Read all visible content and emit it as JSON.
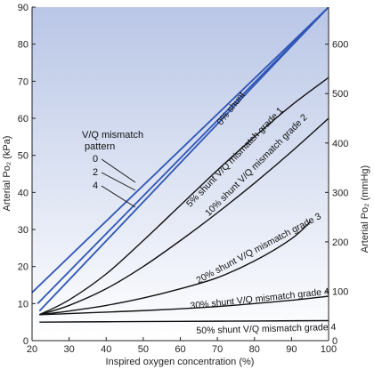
{
  "chart_data": {
    "type": "line",
    "xlabel": "Inspired oxygen concentration (%)",
    "ylabel_left": "Arterial Po₂ (kPa)",
    "ylabel_right": "Arterial Po₂ (mmHg)",
    "xlim": [
      20,
      100
    ],
    "ylim_left": [
      0,
      90
    ],
    "ylim_right_ticks": [
      0,
      100,
      200,
      300,
      400,
      500,
      600
    ],
    "x_ticks": [
      20,
      30,
      40,
      50,
      60,
      70,
      80,
      90,
      100
    ],
    "y_ticks_left": [
      0,
      10,
      20,
      30,
      40,
      50,
      60,
      70,
      80,
      90
    ],
    "legend": {
      "title_line1": "V/Q mismatch",
      "title_line2": "pattern",
      "items": [
        "0",
        "2",
        "4"
      ]
    },
    "colors": {
      "zero_shunt": "#2f55b5",
      "shunt": "#111111",
      "background_top": "#b9c6e6"
    },
    "series": [
      {
        "name": "0% shunt, pattern 0",
        "color": "#2f55b5",
        "x": [
          20,
          100
        ],
        "y": [
          13,
          90
        ]
      },
      {
        "name": "0% shunt, pattern 2",
        "color": "#2f55b5",
        "x": [
          21.5,
          100
        ],
        "y": [
          10,
          90
        ]
      },
      {
        "name": "0% shunt, pattern 4",
        "color": "#2f55b5",
        "x": [
          22,
          100
        ],
        "y": [
          8,
          90
        ]
      },
      {
        "name": "5% shunt",
        "color": "#111111",
        "x": [
          22,
          30,
          40,
          50,
          60,
          70,
          80,
          90,
          100
        ],
        "y": [
          7,
          11,
          18,
          27,
          36.5,
          46,
          55,
          63.5,
          71
        ]
      },
      {
        "name": "10% shunt",
        "color": "#111111",
        "x": [
          22,
          30,
          40,
          50,
          60,
          70,
          80,
          90,
          100
        ],
        "y": [
          7,
          9.5,
          14,
          20,
          27,
          34.5,
          42.5,
          51,
          60
        ]
      },
      {
        "name": "20% shunt",
        "color": "#111111",
        "x": [
          22,
          30,
          40,
          50,
          60,
          70,
          80,
          90,
          95
        ],
        "y": [
          7,
          8,
          9.5,
          11.5,
          14,
          17,
          21.5,
          27.5,
          32
        ]
      },
      {
        "name": "30% shunt",
        "color": "#111111",
        "x": [
          22,
          30,
          40,
          50,
          60,
          70,
          80,
          90,
          100
        ],
        "y": [
          7,
          7.3,
          7.7,
          8.1,
          8.6,
          9.2,
          10,
          10.9,
          12
        ]
      },
      {
        "name": "50% shunt",
        "color": "#111111",
        "x": [
          22,
          40,
          60,
          80,
          100
        ],
        "y": [
          5,
          5.1,
          5.2,
          5.3,
          5.4
        ]
      }
    ],
    "labels": [
      {
        "text": "0% shunt"
      },
      {
        "text": "5% shunt V/Q mismatch grade 1"
      },
      {
        "text": "10% shunt V/Q mismatch grade 2"
      },
      {
        "text": "20% shunt V/Q mismatch grade 3"
      },
      {
        "text": "30% shunt V/Q mismatch grade 4"
      },
      {
        "text": "50% shunt V/Q mismatch grade 4"
      }
    ]
  }
}
